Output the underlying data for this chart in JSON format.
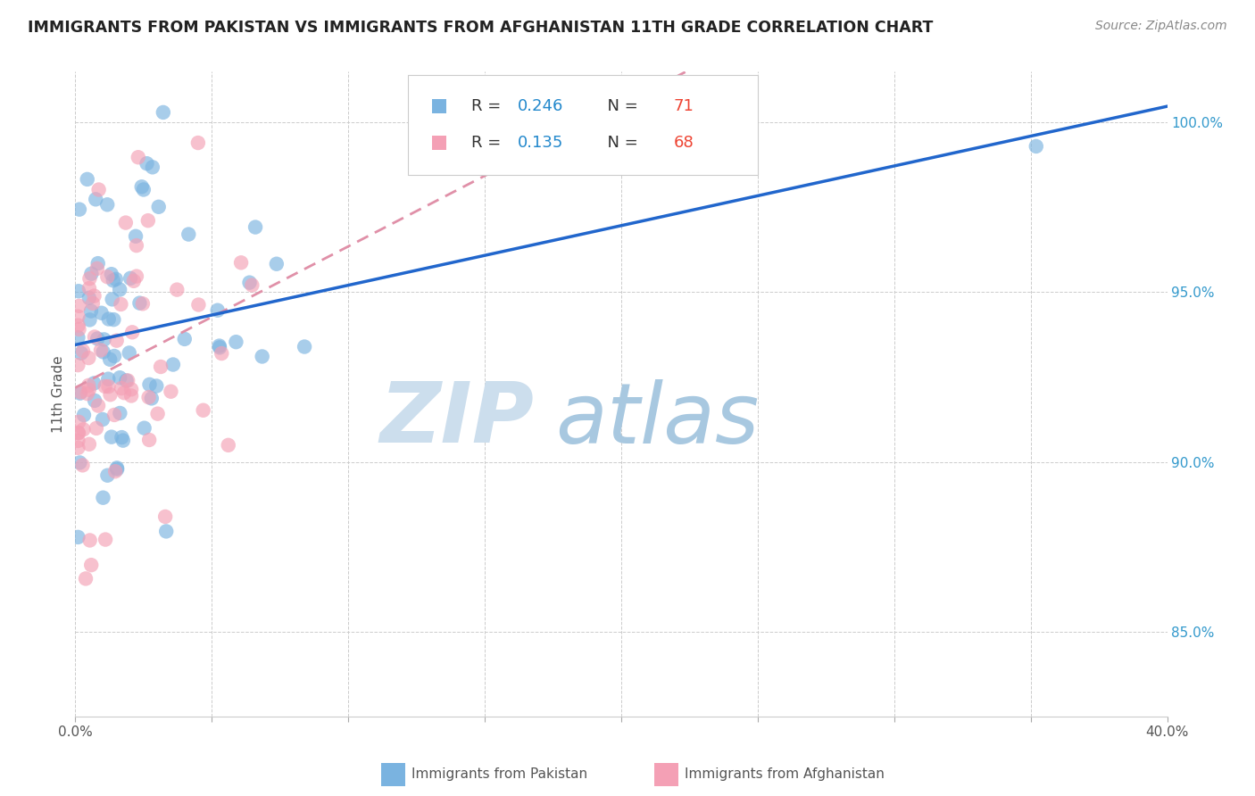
{
  "title": "IMMIGRANTS FROM PAKISTAN VS IMMIGRANTS FROM AFGHANISTAN 11TH GRADE CORRELATION CHART",
  "source": "Source: ZipAtlas.com",
  "ylabel": "11th Grade",
  "xlim": [
    0.0,
    0.4
  ],
  "ylim": [
    0.825,
    1.015
  ],
  "pakistan_color": "#7ab3e0",
  "afghanistan_color": "#f4a0b5",
  "pakistan_line_color": "#2166cc",
  "afghanistan_line_color": "#e8a0b0",
  "R_pakistan": 0.246,
  "N_pakistan": 71,
  "R_afghanistan": 0.135,
  "N_afghanistan": 68,
  "watermark_zip": "ZIP",
  "watermark_atlas": "atlas",
  "watermark_color_zip": "#c8dff0",
  "watermark_color_atlas": "#a8c8e8",
  "background_color": "#ffffff",
  "grid_color": "#dddddd",
  "ytick_vals": [
    0.85,
    0.9,
    0.95,
    1.0
  ],
  "ytick_labels": [
    "85.0%",
    "90.0%",
    "95.0%",
    "100.0%"
  ],
  "legend_label1": "Immigrants from Pakistan",
  "legend_label2": "Immigrants from Afghanistan",
  "text_R": "R = ",
  "text_N": "  N = ",
  "label_color": "#333333",
  "value_color": "#2288cc",
  "n_color": "#2288cc"
}
